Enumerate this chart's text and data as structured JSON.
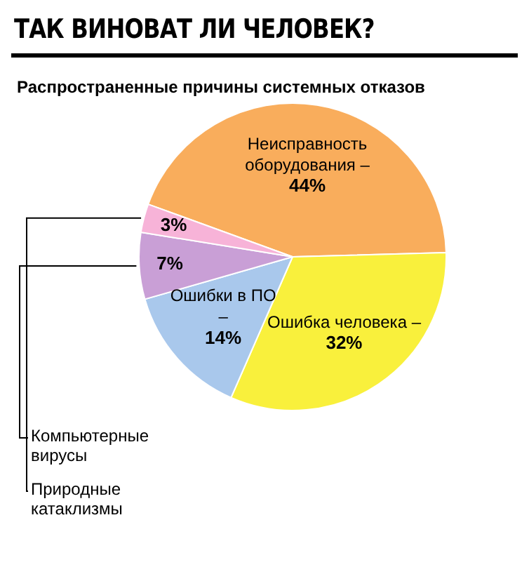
{
  "chart_data": {
    "type": "pie",
    "title": "ТАК ВИНОВАТ ЛИ ЧЕЛОВЕК?",
    "subtitle": "Распространенные причины системных отказов",
    "categories": [
      "Неисправность оборудования –",
      "Ошибка человека –",
      "Ошибки в ПО –",
      "Компьютерные вирусы",
      "Природные катаклизмы"
    ],
    "values": [
      44,
      32,
      14,
      7,
      3
    ],
    "value_labels": [
      "44%",
      "32%",
      "14%",
      "7%",
      "3%"
    ],
    "colors": [
      "#f9ad5c",
      "#f9f03c",
      "#a9c8ec",
      "#c99fd6",
      "#f7b3d8"
    ],
    "legend": false
  }
}
